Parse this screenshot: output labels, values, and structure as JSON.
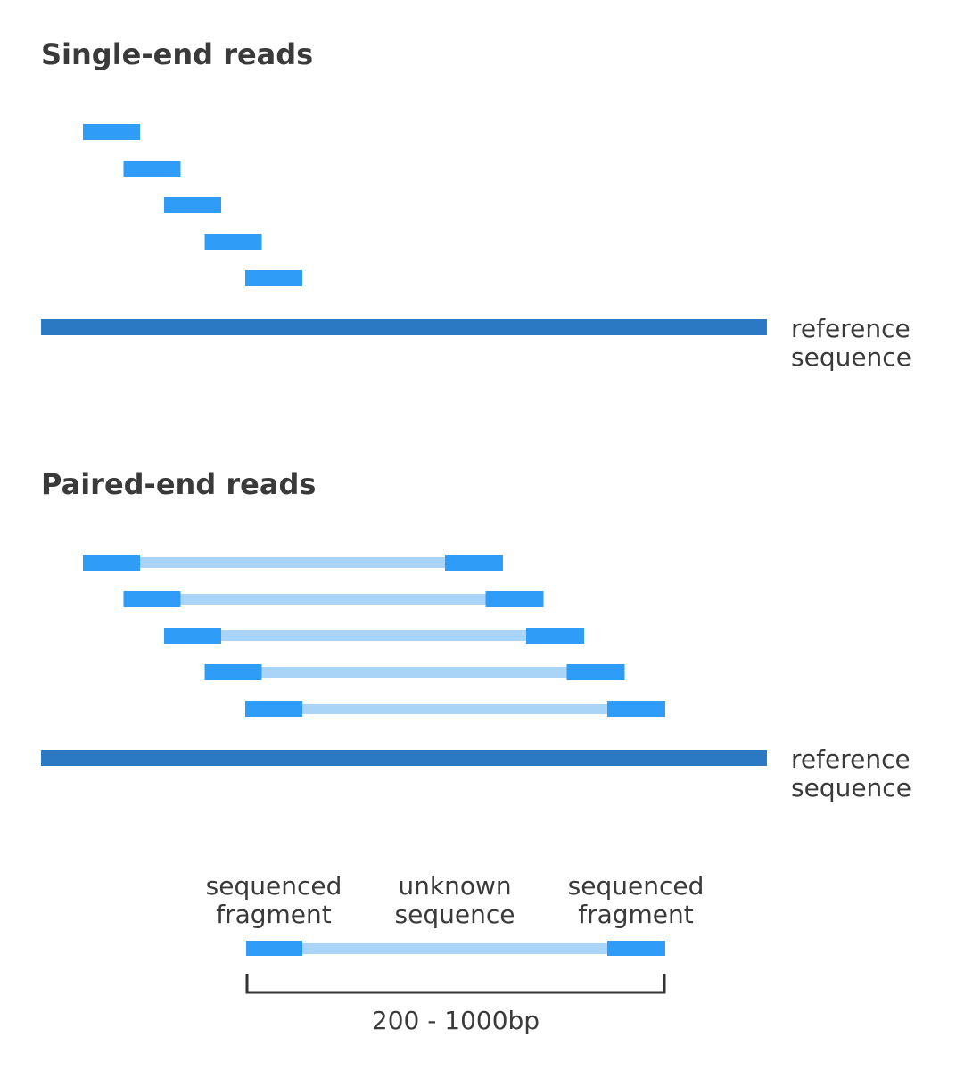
{
  "colors": {
    "read": "#2f9cf8",
    "connector": "#a9d3f7",
    "reference": "#2a79c2",
    "text": "#3a3a3a",
    "bracket": "#333333"
  },
  "single_end": {
    "title": "Single-end reads",
    "read_count": 5,
    "reference_label": {
      "line1": "reference",
      "line2": "sequence"
    }
  },
  "paired_end": {
    "title": "Paired-end reads",
    "pair_count": 5,
    "reference_label": {
      "line1": "reference",
      "line2": "sequence"
    }
  },
  "legend": {
    "left_label": {
      "line1": "sequenced",
      "line2": "fragment"
    },
    "middle_label": {
      "line1": "unknown",
      "line2": "sequence"
    },
    "right_label": {
      "line1": "sequenced",
      "line2": "fragment"
    },
    "size_range": "200 - 1000bp"
  }
}
